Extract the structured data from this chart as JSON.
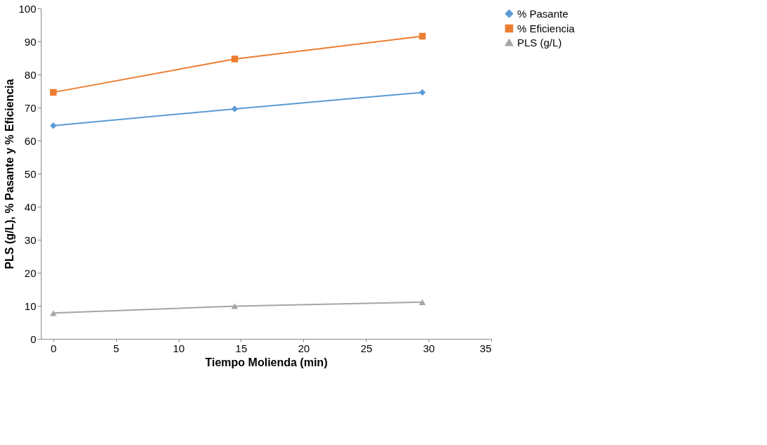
{
  "chart_data": {
    "type": "line",
    "xlabel": "Tiempo Molienda (min)",
    "ylabel": "PLS (g/L), % Pasante y % Eficiencia",
    "xlim": [
      -1,
      35
    ],
    "xticks": [
      0,
      5,
      10,
      15,
      20,
      25,
      30,
      35
    ],
    "ylim": [
      0,
      100
    ],
    "yticks": [
      0,
      10,
      20,
      30,
      40,
      50,
      60,
      70,
      80,
      90,
      100
    ],
    "x": [
      0,
      14.5,
      29.5
    ],
    "series": [
      {
        "name": "% Pasante",
        "color": "#5b9bd5",
        "marker": "diamond",
        "values": [
          64.5,
          69.6,
          74.6
        ]
      },
      {
        "name": "% Eficiencia",
        "color": "#ed7d31",
        "marker": "square",
        "values": [
          74.6,
          84.7,
          91.6
        ]
      },
      {
        "name": "PLS (g/L)",
        "color": "#a5a5a5",
        "marker": "triangle",
        "values": [
          7.8,
          9.9,
          11.1
        ]
      }
    ],
    "legend": "right",
    "grid": false
  }
}
